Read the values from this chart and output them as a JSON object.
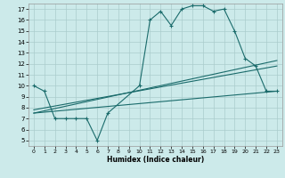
{
  "title": "",
  "xlabel": "Humidex (Indice chaleur)",
  "bg_color": "#cceaea",
  "grid_color": "#aacccc",
  "line_color": "#1a6b6b",
  "xlim": [
    -0.5,
    23.5
  ],
  "ylim": [
    4.5,
    17.5
  ],
  "xticks": [
    0,
    1,
    2,
    3,
    4,
    5,
    6,
    7,
    8,
    9,
    10,
    11,
    12,
    13,
    14,
    15,
    16,
    17,
    18,
    19,
    20,
    21,
    22,
    23
  ],
  "yticks": [
    5,
    6,
    7,
    8,
    9,
    10,
    11,
    12,
    13,
    14,
    15,
    16,
    17
  ],
  "series": [
    {
      "x": [
        0,
        1,
        2,
        3,
        4,
        5,
        6,
        7,
        10,
        11,
        12,
        13,
        14,
        15,
        16,
        17,
        18,
        19,
        20,
        21,
        22,
        23
      ],
      "y": [
        10,
        9.5,
        7,
        7,
        7,
        7,
        5,
        7.5,
        10,
        16,
        16.8,
        15.5,
        17,
        17.3,
        17.3,
        16.8,
        17,
        15,
        12.5,
        11.8,
        9.5,
        9.5
      ],
      "marker": true
    },
    {
      "x": [
        0,
        23
      ],
      "y": [
        7.5,
        9.5
      ],
      "marker": false
    },
    {
      "x": [
        0,
        23
      ],
      "y": [
        7.5,
        12.3
      ],
      "marker": false
    },
    {
      "x": [
        0,
        23
      ],
      "y": [
        7.8,
        11.8
      ],
      "marker": false
    }
  ],
  "figsize": [
    3.2,
    2.0
  ],
  "dpi": 100
}
